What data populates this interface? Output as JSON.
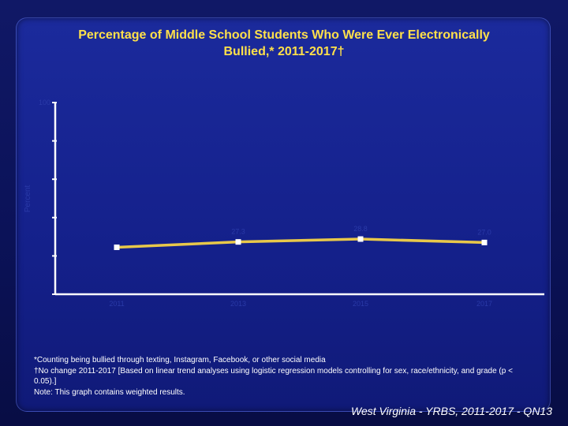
{
  "slide": {
    "title_line1": "Percentage of Middle School Students Who Were Ever Electronically",
    "title_line2": "Bullied,* 2011-2017†",
    "footnotes": [
      "*Counting being bullied through texting, Instagram, Facebook, or other social media",
      "†No change 2011-2017 [Based on linear trend analyses using logistic regression models controlling for sex, race/ethnicity, and grade (p < 0.05).]",
      "Note: This graph contains weighted results."
    ],
    "footer_label": "West Virginia - YRBS, 2011-2017 - QN13"
  },
  "colors": {
    "title": "#ffe04a",
    "line": "#e8c84a",
    "marker": "#ffffff",
    "axis": "#ffffff",
    "muted_text": "#2a3aa8"
  },
  "chart_data": {
    "type": "line",
    "title": "Percentage of Middle School Students Who Were Ever Electronically Bullied,* 2011-2017†",
    "xlabel": "",
    "ylabel": "Percent",
    "ylim": [
      0,
      100
    ],
    "yticks": [
      0,
      20,
      40,
      60,
      80,
      100
    ],
    "ytick_labels": [
      "",
      "",
      "",
      "",
      "",
      "100"
    ],
    "categories": [
      "2011",
      "2013",
      "2015",
      "2017"
    ],
    "series": [
      {
        "name": "Electronically Bullied",
        "values": [
          24.5,
          27.3,
          28.8,
          27.0
        ],
        "labels": [
          "",
          "27.3",
          "28.8",
          "27.0"
        ]
      }
    ],
    "legend": "none",
    "grid": false
  }
}
